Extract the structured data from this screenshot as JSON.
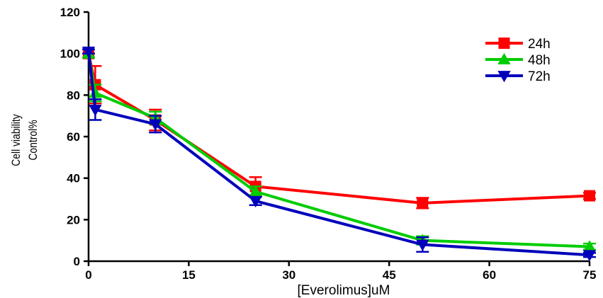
{
  "chart_data": {
    "type": "line",
    "xlabel": "[Everolimus]uM",
    "ylabel_lines": [
      "Cell viability",
      "Control%"
    ],
    "xlim": [
      0,
      75
    ],
    "ylim": [
      0,
      120
    ],
    "xticks": [
      0,
      15,
      30,
      45,
      60,
      75
    ],
    "yticks": [
      0,
      20,
      40,
      60,
      80,
      100,
      120
    ],
    "grid": false,
    "legend_position": "top-right",
    "series": [
      {
        "name": "24h",
        "color": "#ff0000",
        "marker": "square",
        "x": [
          0,
          1,
          10,
          25,
          50,
          75
        ],
        "y": [
          100,
          85,
          68,
          36,
          28,
          31.5
        ],
        "err": [
          2,
          9,
          5,
          4.5,
          2.5,
          1.5
        ]
      },
      {
        "name": "48h",
        "color": "#00cc00",
        "marker": "triangle-up",
        "x": [
          0,
          1,
          10,
          25,
          50,
          75
        ],
        "y": [
          100,
          81,
          69,
          33.5,
          10,
          7
        ],
        "err": [
          2,
          4,
          3,
          2.5,
          2,
          1.5
        ]
      },
      {
        "name": "72h",
        "color": "#0000bb",
        "marker": "triangle-down",
        "x": [
          0,
          1,
          10,
          25,
          50,
          75
        ],
        "y": [
          101,
          73,
          66,
          29,
          8,
          3
        ],
        "err": [
          1,
          5,
          4,
          2,
          3.5,
          1
        ]
      }
    ]
  }
}
